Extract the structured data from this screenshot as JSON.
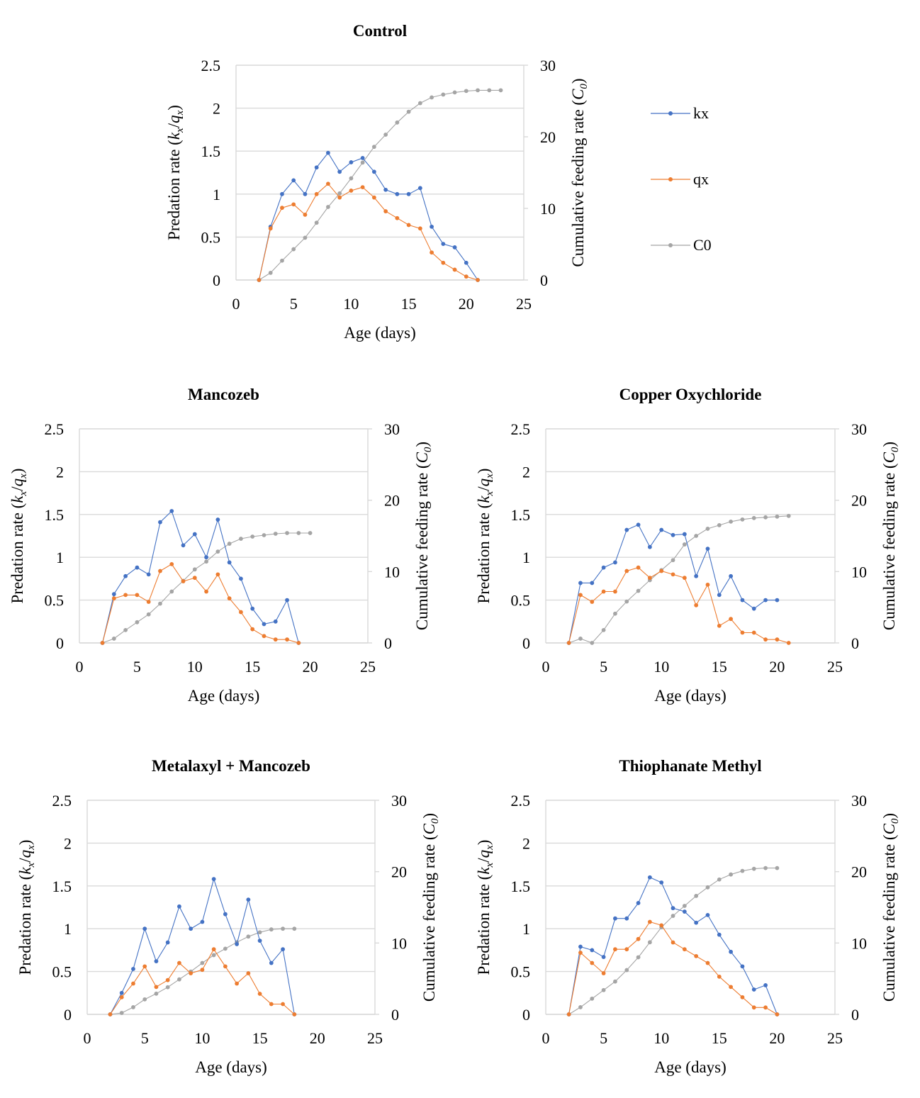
{
  "colors": {
    "kx": "#4472c4",
    "qx": "#ed7d31",
    "C0": "#a5a5a5",
    "grid": "#d9d9d9"
  },
  "legend": [
    "kx",
    "qx",
    "C0"
  ],
  "chart_data": [
    {
      "type": "line",
      "title": "Control",
      "xlabel": "Age (days)",
      "ylabel": "Predation rate (kx/qx)",
      "ylabel_right": "Cumulative feeding rate (C0)",
      "xlim": [
        0,
        25
      ],
      "ylim": [
        0,
        2.5
      ],
      "ylim_right": [
        0,
        30
      ],
      "xticks": [
        "0",
        "5",
        "10",
        "15",
        "20",
        "25"
      ],
      "yticks": [
        "0",
        "0.5",
        "1",
        "1.5",
        "2",
        "2.5"
      ],
      "yticks_right": [
        "0",
        "10",
        "20",
        "30"
      ],
      "series": [
        {
          "name": "kx",
          "axis": "left",
          "x": [
            2,
            3,
            4,
            5,
            6,
            7,
            8,
            9,
            10,
            11,
            12,
            13,
            14,
            15,
            16,
            17,
            18,
            19,
            20,
            21
          ],
          "y": [
            0,
            0.62,
            1.0,
            1.16,
            1.0,
            1.31,
            1.48,
            1.26,
            1.37,
            1.42,
            1.26,
            1.05,
            1.0,
            1.0,
            1.07,
            0.62,
            0.42,
            0.38,
            0.2,
            0
          ]
        },
        {
          "name": "qx",
          "axis": "left",
          "x": [
            2,
            3,
            4,
            5,
            6,
            7,
            8,
            9,
            10,
            11,
            12,
            13,
            14,
            15,
            16,
            17,
            18,
            19,
            20,
            21
          ],
          "y": [
            0,
            0.6,
            0.84,
            0.88,
            0.76,
            1.0,
            1.12,
            0.96,
            1.04,
            1.08,
            0.96,
            0.8,
            0.72,
            0.64,
            0.6,
            0.32,
            0.2,
            0.12,
            0.04,
            0
          ]
        },
        {
          "name": "C0",
          "axis": "right",
          "x": [
            2,
            3,
            4,
            5,
            6,
            7,
            8,
            9,
            10,
            11,
            12,
            13,
            14,
            15,
            16,
            17,
            18,
            19,
            20,
            21,
            22,
            23
          ],
          "y": [
            0,
            1.0,
            2.7,
            4.3,
            5.9,
            8.0,
            10.2,
            12.1,
            14.2,
            16.4,
            18.6,
            20.3,
            22.0,
            23.5,
            24.7,
            25.5,
            25.9,
            26.2,
            26.4,
            26.5,
            26.5,
            26.5
          ]
        }
      ]
    },
    {
      "type": "line",
      "title": "Mancozeb",
      "xlabel": "Age (days)",
      "ylabel": "Predation rate (kx/qx)",
      "ylabel_right": "Cumulative feeding rate (C0)",
      "xlim": [
        0,
        25
      ],
      "ylim": [
        0,
        2.5
      ],
      "ylim_right": [
        0,
        30
      ],
      "xticks": [
        "0",
        "5",
        "10",
        "15",
        "20",
        "25"
      ],
      "yticks": [
        "0",
        "0.5",
        "1",
        "1.5",
        "2",
        "2.5"
      ],
      "yticks_right": [
        "0",
        "10",
        "20",
        "30"
      ],
      "series": [
        {
          "name": "kx",
          "axis": "left",
          "x": [
            2,
            3,
            4,
            5,
            6,
            7,
            8,
            9,
            10,
            11,
            12,
            13,
            14,
            15,
            16,
            17,
            18,
            19
          ],
          "y": [
            0,
            0.57,
            0.78,
            0.88,
            0.8,
            1.41,
            1.54,
            1.14,
            1.27,
            1.0,
            1.44,
            0.94,
            0.75,
            0.4,
            0.22,
            0.25,
            0.5,
            0
          ]
        },
        {
          "name": "qx",
          "axis": "left",
          "x": [
            2,
            3,
            4,
            5,
            6,
            7,
            8,
            9,
            10,
            11,
            12,
            13,
            14,
            15,
            16,
            17,
            18,
            19
          ],
          "y": [
            0,
            0.52,
            0.56,
            0.56,
            0.48,
            0.84,
            0.92,
            0.72,
            0.76,
            0.6,
            0.8,
            0.52,
            0.36,
            0.16,
            0.08,
            0.04,
            0.04,
            0
          ]
        },
        {
          "name": "C0",
          "axis": "right",
          "x": [
            2,
            3,
            4,
            5,
            6,
            7,
            8,
            9,
            10,
            11,
            12,
            13,
            14,
            15,
            16,
            17,
            18,
            19,
            20
          ],
          "y": [
            0,
            0.6,
            1.8,
            2.9,
            4.0,
            5.5,
            7.2,
            8.7,
            10.3,
            11.4,
            12.8,
            13.9,
            14.6,
            14.9,
            15.1,
            15.3,
            15.4,
            15.4,
            15.4
          ]
        }
      ]
    },
    {
      "type": "line",
      "title": "Copper Oxychloride",
      "xlabel": "Age (days)",
      "ylabel": "Predation rate (kx/qx)",
      "ylabel_right": "Cumulative feeding rate (C0)",
      "xlim": [
        0,
        25
      ],
      "ylim": [
        0,
        2.5
      ],
      "ylim_right": [
        0,
        30
      ],
      "xticks": [
        "0",
        "5",
        "10",
        "15",
        "20",
        "25"
      ],
      "yticks": [
        "0",
        "0.5",
        "1",
        "1.5",
        "2",
        "2.5"
      ],
      "yticks_right": [
        "0",
        "10",
        "20",
        "30"
      ],
      "series": [
        {
          "name": "kx",
          "axis": "left",
          "x": [
            2,
            3,
            4,
            5,
            6,
            7,
            8,
            9,
            10,
            11,
            12,
            13,
            14,
            15,
            16,
            17,
            18,
            19,
            20
          ],
          "y": [
            0,
            0.7,
            0.7,
            0.88,
            0.94,
            1.32,
            1.38,
            1.12,
            1.32,
            1.26,
            1.27,
            0.78,
            1.1,
            0.56,
            0.78,
            0.5,
            0.4,
            0.5,
            0.5
          ]
        },
        {
          "name": "qx",
          "axis": "left",
          "x": [
            2,
            3,
            4,
            5,
            6,
            7,
            8,
            9,
            10,
            11,
            12,
            13,
            14,
            15,
            16,
            17,
            18,
            19,
            20,
            21
          ],
          "y": [
            0,
            0.56,
            0.48,
            0.6,
            0.6,
            0.84,
            0.88,
            0.76,
            0.84,
            0.8,
            0.76,
            0.44,
            0.68,
            0.2,
            0.28,
            0.12,
            0.12,
            0.04,
            0.04,
            0
          ]
        },
        {
          "name": "C0",
          "axis": "right",
          "x": [
            2,
            3,
            4,
            5,
            6,
            7,
            8,
            9,
            10,
            11,
            12,
            13,
            14,
            15,
            16,
            17,
            18,
            19,
            20,
            21
          ],
          "y": [
            0,
            0.6,
            0,
            1.8,
            4.1,
            5.8,
            7.3,
            8.8,
            10.2,
            11.6,
            13.8,
            15.0,
            16.0,
            16.5,
            17.0,
            17.3,
            17.5,
            17.6,
            17.7,
            17.8
          ]
        }
      ]
    },
    {
      "type": "line",
      "title": "Metalaxyl + Mancozeb",
      "xlabel": "Age (days)",
      "ylabel": "Predation rate (kx/qx)",
      "ylabel_right": "Cumulative feeding rate (C0)",
      "xlim": [
        0,
        25
      ],
      "ylim": [
        0,
        2.5
      ],
      "ylim_right": [
        0,
        30
      ],
      "xticks": [
        "0",
        "5",
        "10",
        "15",
        "20",
        "25"
      ],
      "yticks": [
        "0",
        "0.5",
        "1",
        "1.5",
        "2",
        "2.5"
      ],
      "yticks_right": [
        "0",
        "10",
        "20",
        "30"
      ],
      "series": [
        {
          "name": "kx",
          "axis": "left",
          "x": [
            2,
            3,
            4,
            5,
            6,
            7,
            8,
            9,
            10,
            11,
            12,
            13,
            14,
            15,
            16,
            17,
            18
          ],
          "y": [
            0,
            0.25,
            0.53,
            1.0,
            0.62,
            0.84,
            1.26,
            1.0,
            1.08,
            1.58,
            1.17,
            0.82,
            1.34,
            0.86,
            0.6,
            0.76,
            0
          ]
        },
        {
          "name": "qx",
          "axis": "left",
          "x": [
            2,
            3,
            4,
            5,
            6,
            7,
            8,
            9,
            10,
            11,
            12,
            13,
            14,
            15,
            16,
            17,
            18
          ],
          "y": [
            0,
            0.2,
            0.36,
            0.56,
            0.32,
            0.4,
            0.6,
            0.48,
            0.52,
            0.76,
            0.56,
            0.36,
            0.48,
            0.24,
            0.12,
            0.12,
            0
          ]
        },
        {
          "name": "C0",
          "axis": "right",
          "x": [
            2,
            3,
            4,
            5,
            6,
            7,
            8,
            9,
            10,
            11,
            12,
            13,
            14,
            15,
            16,
            17,
            18
          ],
          "y": [
            0,
            0.2,
            1.0,
            2.1,
            2.9,
            3.8,
            4.9,
            6.0,
            7.2,
            8.3,
            9.2,
            10.1,
            10.9,
            11.5,
            11.9,
            12.0,
            12.0
          ]
        }
      ]
    },
    {
      "type": "line",
      "title": "Thiophanate Methyl",
      "xlabel": "Age (days)",
      "ylabel": "Predation rate (kx/qx)",
      "ylabel_right": "Cumulative feeding rate (C0)",
      "xlim": [
        0,
        25
      ],
      "ylim": [
        0,
        2.5
      ],
      "ylim_right": [
        0,
        30
      ],
      "xticks": [
        "0",
        "5",
        "10",
        "15",
        "20",
        "25"
      ],
      "yticks": [
        "0",
        "0.5",
        "1",
        "1.5",
        "2",
        "2.5"
      ],
      "yticks_right": [
        "0",
        "10",
        "20",
        "30"
      ],
      "series": [
        {
          "name": "kx",
          "axis": "left",
          "x": [
            2,
            3,
            4,
            5,
            6,
            7,
            8,
            9,
            10,
            11,
            12,
            13,
            14,
            15,
            16,
            17,
            18,
            19,
            20
          ],
          "y": [
            0,
            0.79,
            0.75,
            0.67,
            1.12,
            1.12,
            1.3,
            1.6,
            1.54,
            1.24,
            1.2,
            1.07,
            1.16,
            0.93,
            0.73,
            0.56,
            0.29,
            0.34,
            0
          ]
        },
        {
          "name": "qx",
          "axis": "left",
          "x": [
            2,
            3,
            4,
            5,
            6,
            7,
            8,
            9,
            10,
            11,
            12,
            13,
            14,
            15,
            16,
            17,
            18,
            19,
            20
          ],
          "y": [
            0,
            0.72,
            0.6,
            0.48,
            0.76,
            0.76,
            0.88,
            1.08,
            1.04,
            0.84,
            0.76,
            0.68,
            0.6,
            0.44,
            0.32,
            0.2,
            0.08,
            0.08,
            0
          ]
        },
        {
          "name": "C0",
          "axis": "right",
          "x": [
            2,
            3,
            4,
            5,
            6,
            7,
            8,
            9,
            10,
            11,
            12,
            13,
            14,
            15,
            16,
            17,
            18,
            19,
            20
          ],
          "y": [
            0,
            1.0,
            2.2,
            3.4,
            4.6,
            6.2,
            8.0,
            10.1,
            12.2,
            13.8,
            15.2,
            16.6,
            17.8,
            18.9,
            19.6,
            20.1,
            20.4,
            20.5,
            20.5
          ]
        }
      ]
    }
  ]
}
